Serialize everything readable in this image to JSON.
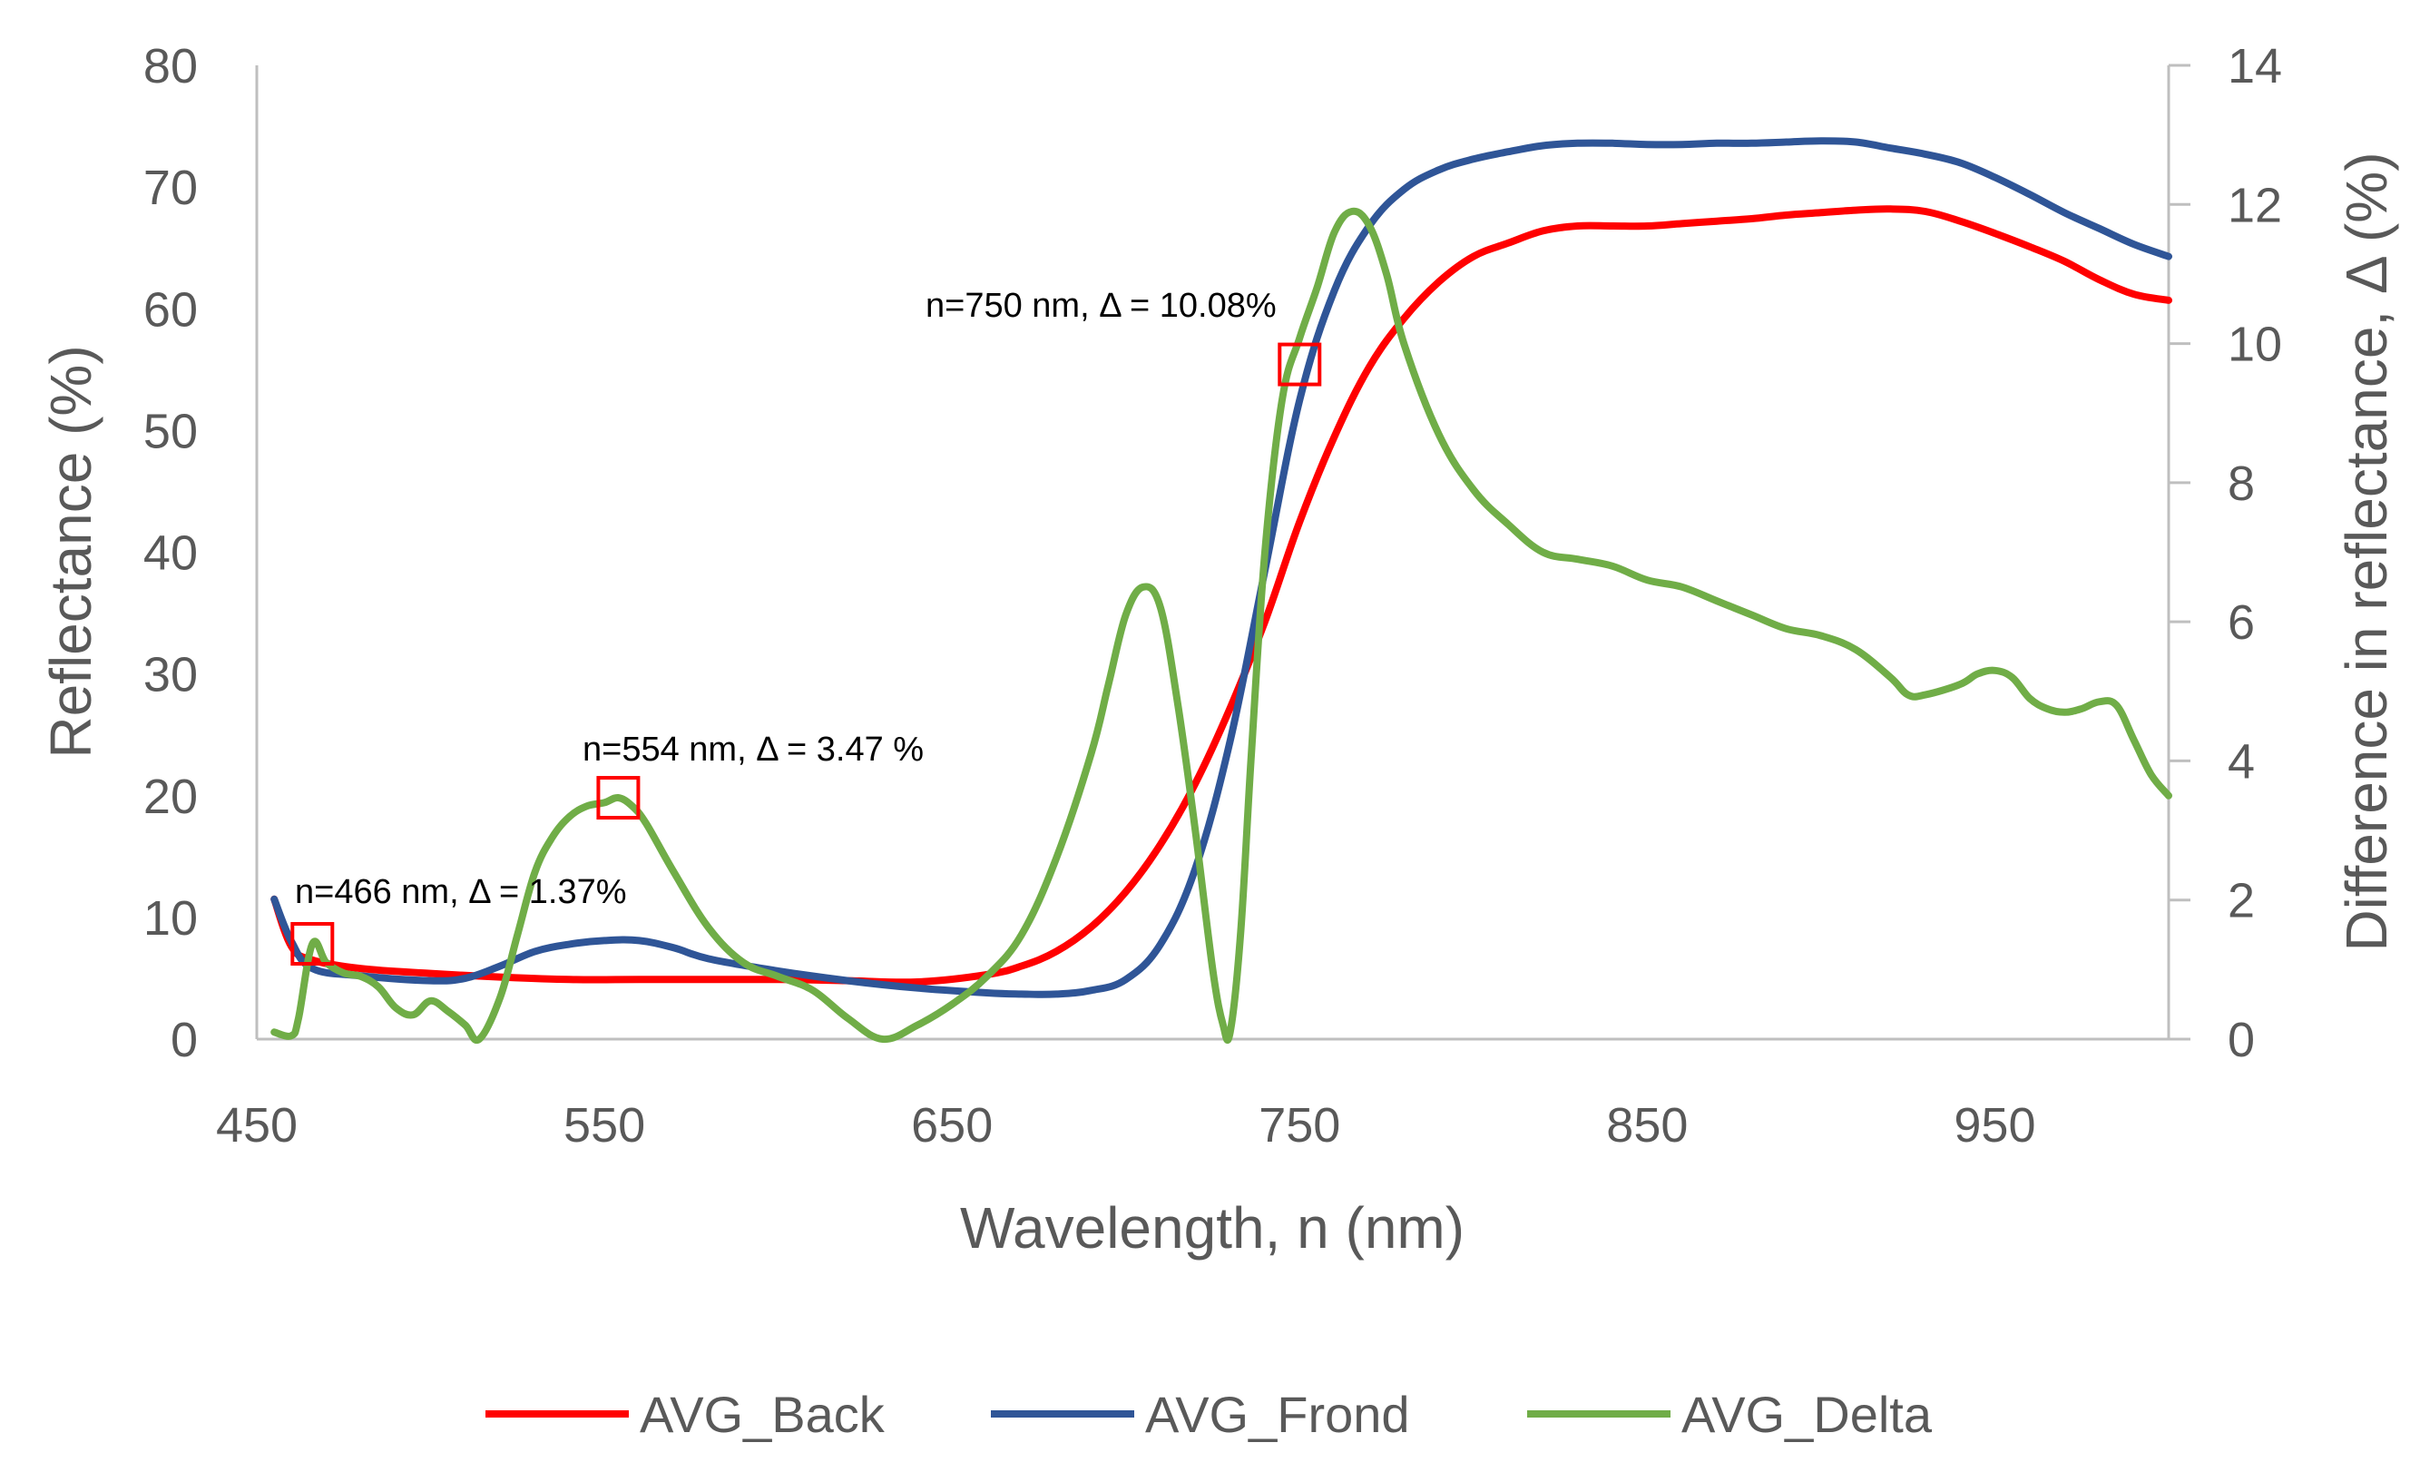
{
  "chart_data": {
    "type": "line",
    "xlabel": "Wavelength, n (nm)",
    "ylabel": "Reflectance (%)",
    "y2label": "Difference in reflectance, Δ (%)",
    "xlim": [
      450,
      1000
    ],
    "ylim": [
      0,
      80
    ],
    "y2lim": [
      0,
      14
    ],
    "x_ticks": [
      "450",
      "550",
      "650",
      "750",
      "850",
      "950"
    ],
    "y_ticks": [
      "0",
      "10",
      "20",
      "30",
      "40",
      "50",
      "60",
      "70",
      "80"
    ],
    "y2_ticks": [
      "0",
      "2",
      "4",
      "6",
      "8",
      "10",
      "12",
      "14"
    ],
    "grid": false,
    "legend_position": "bottom",
    "series": [
      {
        "name": "AVG_Back",
        "axis": "left",
        "color": "#FF0000",
        "x": [
          455,
          460,
          466,
          480,
          500,
          520,
          540,
          560,
          600,
          620,
          640,
          660,
          670,
          680,
          690,
          700,
          710,
          720,
          730,
          740,
          750,
          760,
          770,
          780,
          790,
          800,
          810,
          820,
          830,
          840,
          850,
          860,
          870,
          880,
          890,
          900,
          910,
          920,
          930,
          940,
          950,
          960,
          970,
          980,
          990,
          1000
        ],
        "y": [
          11.5,
          7.6,
          6.5,
          5.8,
          5.4,
          5.1,
          4.9,
          4.9,
          4.9,
          4.8,
          4.7,
          5.3,
          6.0,
          7.2,
          9.2,
          12.1,
          16.0,
          21.0,
          27.2,
          34.3,
          42.5,
          49.5,
          55.2,
          59.2,
          62.2,
          64.3,
          65.4,
          66.4,
          66.8,
          66.8,
          66.8,
          67.0,
          67.2,
          67.4,
          67.7,
          67.9,
          68.1,
          68.2,
          68.0,
          67.2,
          66.2,
          65.1,
          63.9,
          62.4,
          61.2,
          60.7
        ]
      },
      {
        "name": "AVG_Frond",
        "axis": "left",
        "color": "#2F5597",
        "x": [
          455,
          460,
          466,
          480,
          500,
          510,
          520,
          530,
          540,
          550,
          560,
          570,
          580,
          600,
          620,
          640,
          660,
          670,
          680,
          690,
          700,
          710,
          720,
          730,
          740,
          750,
          760,
          770,
          780,
          790,
          800,
          810,
          820,
          830,
          840,
          850,
          860,
          870,
          880,
          890,
          900,
          910,
          920,
          930,
          940,
          950,
          960,
          970,
          980,
          990,
          1000
        ],
        "y": [
          11.5,
          8.0,
          5.8,
          5.2,
          4.8,
          5.0,
          6.0,
          7.2,
          7.8,
          8.1,
          8.1,
          7.5,
          6.6,
          5.6,
          4.8,
          4.2,
          3.8,
          3.7,
          3.7,
          4.0,
          4.9,
          7.8,
          14.0,
          24.5,
          38.5,
          52.5,
          61.5,
          66.8,
          69.8,
          71.4,
          72.3,
          72.9,
          73.4,
          73.6,
          73.6,
          73.5,
          73.5,
          73.6,
          73.6,
          73.7,
          73.8,
          73.7,
          73.2,
          72.7,
          72.0,
          70.8,
          69.4,
          67.9,
          66.6,
          65.3,
          64.3
        ]
      },
      {
        "name": "AVG_Delta",
        "axis": "right",
        "color": "#70AD47",
        "x": [
          455,
          460,
          462,
          466,
          470,
          475,
          480,
          485,
          490,
          495,
          500,
          505,
          510,
          514,
          520,
          525,
          530,
          535,
          540,
          545,
          550,
          554,
          558,
          562,
          570,
          580,
          590,
          600,
          610,
          620,
          630,
          640,
          650,
          660,
          670,
          680,
          690,
          695,
          700,
          705,
          710,
          715,
          720,
          725,
          728,
          730,
          733,
          736,
          740,
          745,
          750,
          755,
          760,
          765,
          770,
          775,
          780,
          790,
          800,
          810,
          820,
          830,
          840,
          850,
          860,
          870,
          880,
          890,
          900,
          910,
          920,
          925,
          930,
          940,
          945,
          950,
          955,
          960,
          965,
          970,
          975,
          980,
          985,
          990,
          995,
          1000
        ],
        "y": [
          0.1,
          0.05,
          0.3,
          1.37,
          1.1,
          0.95,
          0.9,
          0.75,
          0.45,
          0.35,
          0.55,
          0.4,
          0.2,
          0.0,
          0.6,
          1.5,
          2.4,
          2.9,
          3.2,
          3.35,
          3.4,
          3.47,
          3.35,
          3.1,
          2.4,
          1.6,
          1.1,
          0.9,
          0.7,
          0.3,
          0.0,
          0.2,
          0.5,
          0.9,
          1.5,
          2.6,
          4.1,
          5.1,
          6.1,
          6.5,
          6.2,
          4.8,
          3.0,
          1.0,
          0.2,
          0.1,
          1.5,
          4.0,
          7.0,
          9.2,
          10.08,
          10.8,
          11.6,
          11.9,
          11.7,
          11.0,
          10.0,
          8.7,
          7.9,
          7.4,
          7.0,
          6.9,
          6.8,
          6.6,
          6.5,
          6.3,
          6.1,
          5.9,
          5.8,
          5.6,
          5.2,
          4.95,
          4.95,
          5.1,
          5.25,
          5.3,
          5.2,
          4.9,
          4.75,
          4.7,
          4.75,
          4.85,
          4.8,
          4.3,
          3.8,
          3.5
        ]
      }
    ],
    "annotations": [
      {
        "text": "n=466 nm, Δ = 1.37%",
        "x": 466,
        "y_right": 1.37
      },
      {
        "text": "n=554 nm, Δ = 3.47 %",
        "x": 554,
        "y_right": 3.47
      },
      {
        "text": "n=750 nm, Δ = 10.08%",
        "x": 750,
        "y_right": 9.7
      }
    ]
  }
}
